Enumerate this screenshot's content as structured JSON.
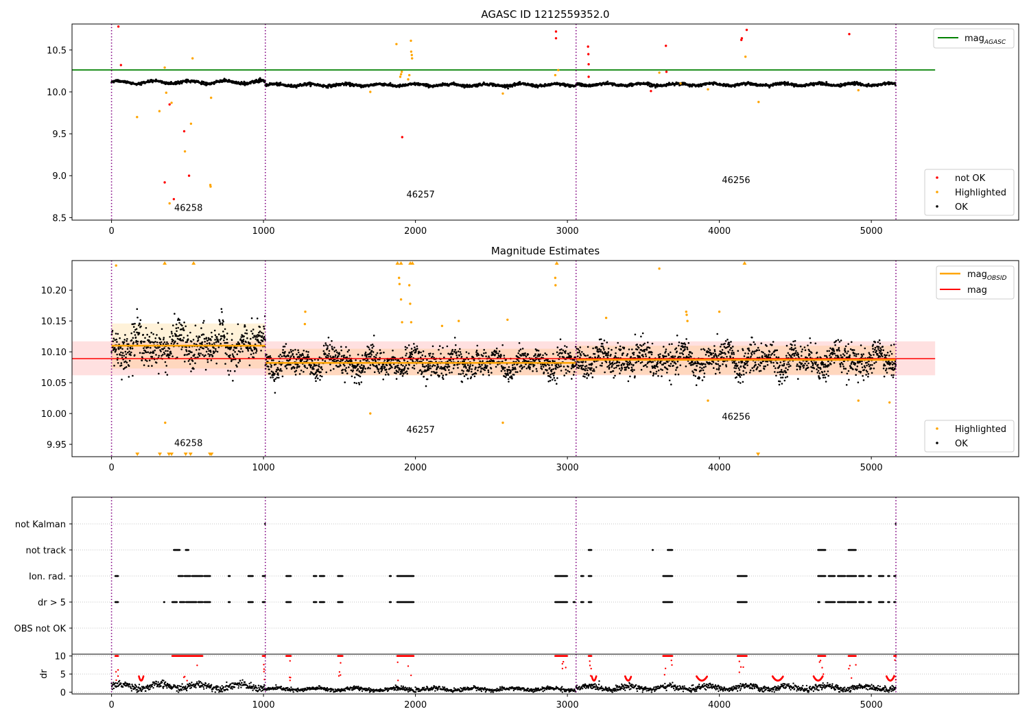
{
  "figure": {
    "background": "#ffffff"
  },
  "colors": {
    "ok": "#000000",
    "highlighted": "#ffa500",
    "not_ok": "#ff0000",
    "mag_agasc": "#008000",
    "mag_obsid": "#ffa500",
    "mag": "#ff0000",
    "obsid_boundary": "#800080",
    "flag_grid": "#b0b0b0"
  },
  "chart_data": [
    {
      "id": "agasc_panel",
      "type": "scatter",
      "title": "AGASC ID 1212559352.0",
      "xlim": [
        -260,
        5970
      ],
      "ylim": [
        8.47,
        10.81
      ],
      "xticks": [
        0,
        1000,
        2000,
        3000,
        4000,
        5000
      ],
      "yticks": [
        8.5,
        9.0,
        9.5,
        10.0,
        10.5
      ],
      "ytick_labels": [
        "8.5",
        "9.0",
        "9.5",
        "10.0",
        "10.5"
      ],
      "legend_top": {
        "placement": "upper right",
        "entries": [
          {
            "label": "mag",
            "sub": "AGASC",
            "color": "#008000"
          }
        ]
      },
      "legend_bottom": {
        "placement": "lower right",
        "entries": [
          "not OK",
          "Highlighted",
          "OK"
        ]
      },
      "mag_agasc": 10.262,
      "mag_agasc_xrange": [
        -260,
        5420
      ],
      "obsid_boundaries": [
        0,
        1012,
        3057,
        5162
      ],
      "obsid_labels": [
        {
          "text": "46258",
          "x": 506,
          "y": 8.58
        },
        {
          "text": "46257",
          "x": 2034,
          "y": 8.74
        },
        {
          "text": "46256",
          "x": 4110,
          "y": 8.91
        }
      ],
      "baseline": {
        "x_range": [
          0,
          5162
        ],
        "segments": [
          {
            "x": [
              0,
              1012
            ],
            "level": 10.115,
            "wiggle": 0.03
          },
          {
            "x": [
              1012,
              3057
            ],
            "level": 10.082,
            "wiggle": 0.02
          },
          {
            "x": [
              3057,
              5162
            ],
            "level": 10.088,
            "wiggle": 0.022
          }
        ]
      },
      "not_ok_points": [
        [
          45,
          10.78
        ],
        [
          62,
          10.32
        ],
        [
          350,
          8.92
        ],
        [
          382,
          9.85
        ],
        [
          410,
          8.72
        ],
        [
          478,
          9.53
        ],
        [
          510,
          9.0
        ],
        [
          1913,
          9.46
        ],
        [
          2925,
          10.64
        ],
        [
          2925,
          10.72
        ],
        [
          3136,
          10.54
        ],
        [
          3138,
          10.45
        ],
        [
          3140,
          10.33
        ],
        [
          3140,
          10.18
        ],
        [
          3550,
          10.01
        ],
        [
          3648,
          10.55
        ],
        [
          3652,
          10.24
        ],
        [
          4145,
          10.62
        ],
        [
          4148,
          10.64
        ],
        [
          4180,
          10.74
        ],
        [
          4855,
          10.69
        ]
      ],
      "highlighted_points": [
        [
          168,
          9.7
        ],
        [
          315,
          9.77
        ],
        [
          350,
          10.29
        ],
        [
          360,
          9.99
        ],
        [
          382,
          8.67
        ],
        [
          395,
          9.87
        ],
        [
          483,
          9.29
        ],
        [
          523,
          9.62
        ],
        [
          533,
          10.4
        ],
        [
          650,
          8.89
        ],
        [
          652,
          8.87
        ],
        [
          655,
          9.93
        ],
        [
          1875,
          10.57
        ],
        [
          1900,
          10.18
        ],
        [
          1905,
          10.21
        ],
        [
          1910,
          10.24
        ],
        [
          1970,
          10.61
        ],
        [
          1972,
          10.48
        ],
        [
          1976,
          10.44
        ],
        [
          1978,
          10.4
        ],
        [
          1960,
          10.2
        ],
        [
          1952,
          10.15
        ],
        [
          1703,
          10.0
        ],
        [
          2575,
          9.98
        ],
        [
          2920,
          10.2
        ],
        [
          2940,
          10.26
        ],
        [
          3605,
          10.23
        ],
        [
          3745,
          10.1
        ],
        [
          3925,
          10.03
        ],
        [
          4172,
          10.42
        ],
        [
          4258,
          9.88
        ],
        [
          4915,
          10.02
        ]
      ]
    },
    {
      "id": "magnitude_panel",
      "type": "scatter",
      "title": "Magnitude Estimates",
      "xlim": [
        -260,
        5970
      ],
      "ylim": [
        9.93,
        10.248
      ],
      "xticks": [
        0,
        1000,
        2000,
        3000,
        4000,
        5000
      ],
      "yticks": [
        9.95,
        10.0,
        10.05,
        10.1,
        10.15,
        10.2
      ],
      "ytick_labels": [
        "9.95",
        "10.00",
        "10.05",
        "10.10",
        "10.15",
        "10.20"
      ],
      "legend_top": {
        "placement": "upper right",
        "entries": [
          {
            "label": "mag",
            "sub": "OBSID",
            "color": "#ffa500"
          },
          {
            "label": "mag",
            "sub": "",
            "color": "#ff0000"
          }
        ]
      },
      "legend_bottom": {
        "placement": "lower right",
        "entries": [
          "Highlighted",
          "OK"
        ]
      },
      "mag": 10.089,
      "mag_band": [
        10.062,
        10.117
      ],
      "mag_xrange": [
        -260,
        5420
      ],
      "obsid_mags": [
        {
          "x": [
            0,
            1012
          ],
          "mag": 10.11,
          "band": [
            10.073,
            10.146
          ]
        },
        {
          "x": [
            1012,
            3057
          ],
          "mag": 10.082,
          "band": [
            10.062,
            10.105
          ]
        },
        {
          "x": [
            3057,
            5162
          ],
          "mag": 10.087,
          "band": [
            10.063,
            10.11
          ]
        }
      ],
      "obsid_boundaries": [
        0,
        1012,
        3057,
        5162
      ],
      "obsid_labels": [
        {
          "text": "46258",
          "x": 506,
          "y": 9.947
        },
        {
          "text": "46257",
          "x": 2034,
          "y": 9.969
        },
        {
          "text": "46256",
          "x": 4110,
          "y": 9.99
        }
      ],
      "ok_segments": [
        {
          "x": [
            0,
            1012
          ],
          "level": 10.11,
          "spread": 0.028
        },
        {
          "x": [
            1012,
            3057
          ],
          "level": 10.082,
          "spread": 0.02
        },
        {
          "x": [
            3057,
            5162
          ],
          "level": 10.087,
          "spread": 0.022
        }
      ],
      "highlighted_points": [
        [
          30,
          10.24
        ],
        [
          353,
          9.985
        ],
        [
          1703,
          10.0
        ],
        [
          2575,
          9.985
        ],
        [
          2920,
          10.22
        ],
        [
          2922,
          10.208
        ],
        [
          3605,
          10.235
        ],
        [
          3782,
          10.165
        ],
        [
          3785,
          10.16
        ],
        [
          3925,
          10.021
        ],
        [
          4000,
          10.165
        ],
        [
          4915,
          10.021
        ],
        [
          5120,
          10.018
        ],
        [
          1275,
          10.165
        ],
        [
          1272,
          10.145
        ],
        [
          1892,
          10.22
        ],
        [
          1895,
          10.21
        ],
        [
          1905,
          10.185
        ],
        [
          1960,
          10.208
        ],
        [
          1965,
          10.178
        ],
        [
          1912,
          10.148
        ],
        [
          1972,
          10.148
        ],
        [
          2175,
          10.142
        ],
        [
          2285,
          10.15
        ],
        [
          2606,
          10.152
        ],
        [
          3255,
          10.155
        ],
        [
          3790,
          10.15
        ]
      ],
      "clipped_high": [
        350,
        540,
        1882,
        1905,
        1966,
        1980,
        2930,
        4166
      ],
      "clipped_low": [
        170,
        318,
        378,
        395,
        488,
        520,
        648,
        658,
        4255
      ]
    },
    {
      "id": "flags_panel",
      "type": "scatter",
      "title": "",
      "xlim": [
        -260,
        5970
      ],
      "categories": [
        "OBS not OK",
        "dr > 5",
        "Ion. rad.",
        "not track",
        "not Kalman"
      ],
      "category_labels": [
        "OBS not OK",
        "dr > 5",
        "Ion. rad.",
        "not track",
        "not Kalman"
      ],
      "obsid_boundaries": [
        0,
        1012,
        3057,
        5162
      ],
      "flags": {
        "not Kalman": [
          [
            1010,
            1012
          ],
          [
            5160,
            5162
          ]
        ],
        "not track": [
          [
            410,
            450
          ],
          [
            488,
            508
          ],
          [
            3140,
            3158
          ],
          [
            3560,
            3565
          ],
          [
            3660,
            3690
          ],
          [
            4650,
            4700
          ],
          [
            4850,
            4900
          ]
        ],
        "Ion. rad.": [
          [
            25,
            45
          ],
          [
            440,
            470
          ],
          [
            480,
            520
          ],
          [
            530,
            600
          ],
          [
            610,
            650
          ],
          [
            770,
            780
          ],
          [
            900,
            930
          ],
          [
            995,
            1012
          ],
          [
            1150,
            1180
          ],
          [
            1330,
            1350
          ],
          [
            1370,
            1400
          ],
          [
            1490,
            1520
          ],
          [
            1830,
            1840
          ],
          [
            1880,
            1990
          ],
          [
            2920,
            3000
          ],
          [
            3090,
            3105
          ],
          [
            3140,
            3160
          ],
          [
            3630,
            3690
          ],
          [
            4120,
            4180
          ],
          [
            4650,
            4700
          ],
          [
            4720,
            4760
          ],
          [
            4780,
            4830
          ],
          [
            4840,
            4900
          ],
          [
            4920,
            4950
          ],
          [
            4980,
            5000
          ],
          [
            5050,
            5080
          ],
          [
            5110,
            5120
          ],
          [
            5150,
            5160
          ]
        ],
        "dr > 5": [
          [
            25,
            45
          ],
          [
            345,
            350
          ],
          [
            400,
            430
          ],
          [
            450,
            480
          ],
          [
            490,
            560
          ],
          [
            570,
            600
          ],
          [
            610,
            650
          ],
          [
            770,
            780
          ],
          [
            900,
            930
          ],
          [
            995,
            1012
          ],
          [
            1150,
            1180
          ],
          [
            1330,
            1350
          ],
          [
            1370,
            1400
          ],
          [
            1490,
            1520
          ],
          [
            1830,
            1840
          ],
          [
            1880,
            1990
          ],
          [
            2920,
            3000
          ],
          [
            3040,
            3050
          ],
          [
            3090,
            3105
          ],
          [
            3140,
            3160
          ],
          [
            3630,
            3690
          ],
          [
            4120,
            4180
          ],
          [
            4650,
            4660
          ],
          [
            4700,
            4760
          ],
          [
            4780,
            4830
          ],
          [
            4840,
            4900
          ],
          [
            4920,
            4950
          ],
          [
            4980,
            5000
          ],
          [
            5050,
            5080
          ],
          [
            5110,
            5120
          ],
          [
            5150,
            5160
          ]
        ],
        "OBS not OK": []
      }
    },
    {
      "id": "dr_panel",
      "type": "scatter",
      "title": "",
      "ylabel": "dr",
      "xlim": [
        -260,
        5970
      ],
      "ylim": [
        -0.5,
        10.5
      ],
      "xticks": [
        0,
        1000,
        2000,
        3000,
        4000,
        5000
      ],
      "yticks": [
        0,
        5,
        10
      ],
      "ytick_labels": [
        "0",
        "5",
        "10"
      ],
      "obsid_boundaries": [
        0,
        1012,
        3057,
        5162
      ],
      "ok_segments": [
        {
          "x": [
            0,
            1012
          ],
          "level": 1.6,
          "spread": 1.1
        },
        {
          "x": [
            1012,
            3057
          ],
          "level": 0.8,
          "spread": 0.6
        },
        {
          "x": [
            3057,
            5162
          ],
          "level": 1.2,
          "spread": 0.9
        }
      ],
      "dr_high_ranges": [
        [
          25,
          45
        ],
        [
          400,
          600
        ],
        [
          995,
          1012
        ],
        [
          1150,
          1180
        ],
        [
          1490,
          1520
        ],
        [
          1880,
          1990
        ],
        [
          2920,
          3000
        ],
        [
          3140,
          3160
        ],
        [
          3630,
          3690
        ],
        [
          4120,
          4180
        ],
        [
          4650,
          4700
        ],
        [
          4850,
          4900
        ],
        [
          5150,
          5162
        ]
      ],
      "red_arcs": [
        [
          180,
          210
        ],
        [
          3850,
          3920
        ],
        [
          4350,
          4420
        ],
        [
          4620,
          4680
        ],
        [
          5100,
          5150
        ],
        [
          3160,
          3190
        ],
        [
          3380,
          3420
        ]
      ]
    }
  ]
}
